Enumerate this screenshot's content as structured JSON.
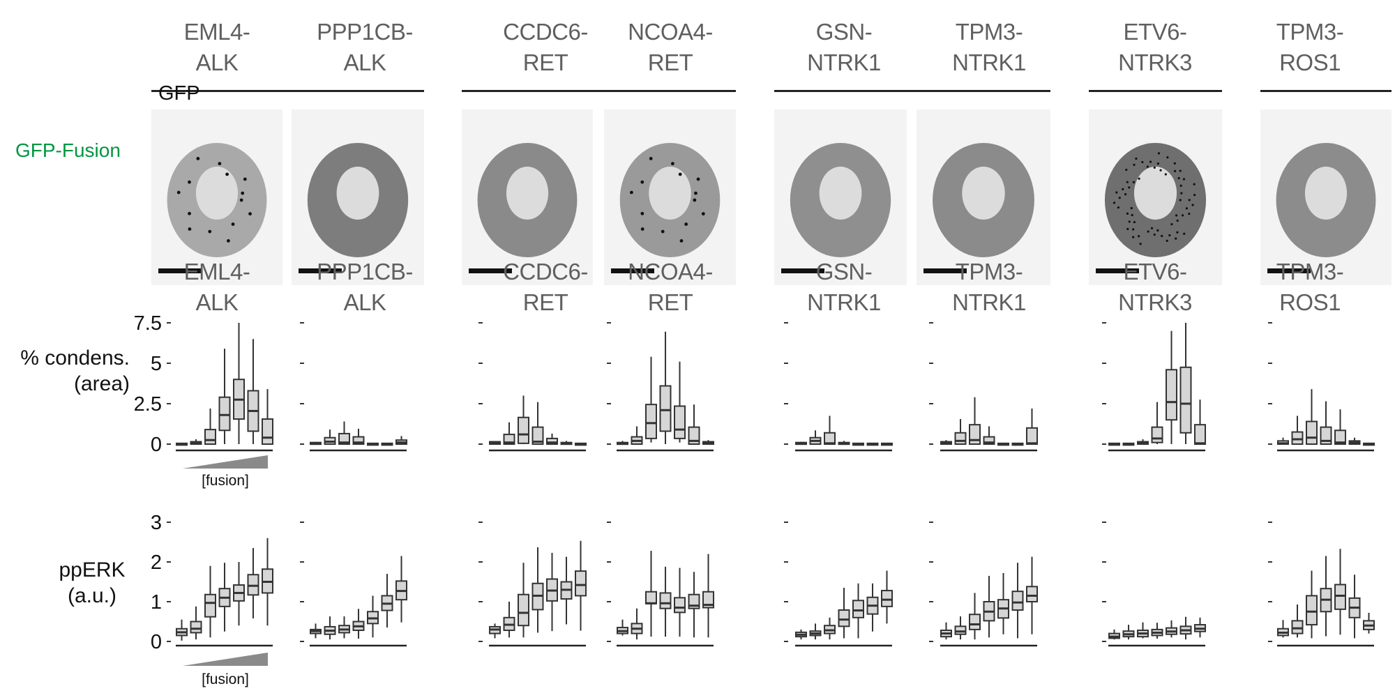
{
  "figure": {
    "image_row_label": "GFP-Fusion",
    "image_channel_label": "GFP",
    "label_color": "#009640",
    "fusion_ramp_label": "[fusion]"
  },
  "groups": [
    {
      "kinase": "ALK"
    },
    {
      "kinase": "RET"
    },
    {
      "kinase": "NTRK1"
    },
    {
      "kinase": "NTRK3"
    },
    {
      "kinase": "ROS1"
    }
  ],
  "fusions": [
    {
      "line1": "EML4-",
      "line2": "ALK",
      "group": 0
    },
    {
      "line1": "PPP1CB-",
      "line2": "ALK",
      "group": 0
    },
    {
      "line1": "CCDC6-",
      "line2": "RET",
      "group": 1
    },
    {
      "line1": "NCOA4-",
      "line2": "RET",
      "group": 1
    },
    {
      "line1": "GSN-",
      "line2": "NTRK1",
      "group": 2
    },
    {
      "line1": "TPM3-",
      "line2": "NTRK1",
      "group": 2
    },
    {
      "line1": "ETV6-",
      "line2": "NTRK3",
      "group": 3
    },
    {
      "line1": "TPM3-",
      "line2": "ROS1",
      "group": 4
    }
  ],
  "chart_data": [
    {
      "type": "box",
      "title": "% condens. (area) vs [fusion]",
      "ylabel_line1": "% condens.",
      "ylabel_line2": "(area)",
      "xlabel": "[fusion]",
      "ylim": [
        0,
        7.5
      ],
      "yticks": [
        0,
        2.5,
        5,
        7.5
      ],
      "ytick_labels": [
        "0",
        "2.5",
        "5",
        "7.5"
      ],
      "note": "7 bins of increasing fusion concentration per panel; values [whisker_low, q1, median, q3, whisker_high]",
      "series": [
        {
          "name": "EML4-ALK",
          "boxes": [
            [
              0,
              0,
              0.02,
              0.05,
              0.05
            ],
            [
              0,
              0,
              0.05,
              0.15,
              0.3
            ],
            [
              0,
              0,
              0.25,
              0.9,
              2.2
            ],
            [
              0,
              0.85,
              1.8,
              2.9,
              5.9
            ],
            [
              0,
              1.55,
              2.75,
              4.0,
              7.5
            ],
            [
              0,
              0.8,
              2.05,
              3.3,
              6.5
            ],
            [
              0,
              0,
              0.4,
              1.55,
              3.4
            ]
          ]
        },
        {
          "name": "PPP1CB-ALK",
          "boxes": [
            [
              0,
              0,
              0.02,
              0.1,
              0.15
            ],
            [
              0,
              0,
              0.15,
              0.4,
              0.9
            ],
            [
              0,
              0,
              0.1,
              0.65,
              1.4
            ],
            [
              0,
              0,
              0.1,
              0.45,
              0.95
            ],
            [
              0,
              0,
              0.02,
              0.05,
              0.05
            ],
            [
              0,
              0,
              0.02,
              0.05,
              0.05
            ],
            [
              0,
              0,
              0.1,
              0.25,
              0.5
            ]
          ]
        },
        {
          "name": "CCDC6-RET",
          "boxes": [
            [
              0,
              0,
              0.05,
              0.15,
              0.15
            ],
            [
              0,
              0,
              0.1,
              0.6,
              1.35
            ],
            [
              0,
              0.05,
              0.6,
              1.65,
              3.0
            ],
            [
              0,
              0,
              0.15,
              1.05,
              2.6
            ],
            [
              0,
              0,
              0.1,
              0.35,
              0.65
            ],
            [
              0,
              0,
              0.05,
              0.1,
              0.2
            ],
            [
              0,
              0,
              0.02,
              0.05,
              0.05
            ]
          ]
        },
        {
          "name": "NCOA4-RET",
          "boxes": [
            [
              0,
              0,
              0.05,
              0.1,
              0.2
            ],
            [
              0,
              0,
              0.2,
              0.45,
              1.1
            ],
            [
              0.1,
              0.35,
              1.3,
              2.45,
              5.4
            ],
            [
              0,
              0.8,
              2.1,
              3.6,
              6.95
            ],
            [
              0.1,
              0.35,
              0.9,
              2.35,
              5.1
            ],
            [
              0,
              0,
              0.2,
              1.05,
              2.45
            ],
            [
              0,
              0,
              0.05,
              0.15,
              0.25
            ]
          ]
        },
        {
          "name": "GSN-NTRK1",
          "boxes": [
            [
              0,
              0,
              0.02,
              0.1,
              0.15
            ],
            [
              0,
              0,
              0.2,
              0.4,
              0.85
            ],
            [
              0,
              0,
              0.05,
              0.7,
              1.75
            ],
            [
              0,
              0,
              0.02,
              0.1,
              0.2
            ],
            [
              0,
              0,
              0.02,
              0.05,
              0.05
            ],
            [
              0,
              0,
              0.02,
              0.05,
              0.05
            ],
            [
              0,
              0,
              0.02,
              0.05,
              0.05
            ]
          ]
        },
        {
          "name": "TPM3-NTRK1",
          "boxes": [
            [
              0,
              0,
              0.05,
              0.15,
              0.25
            ],
            [
              0,
              0,
              0.2,
              0.7,
              1.55
            ],
            [
              0,
              0,
              0.25,
              1.2,
              2.9
            ],
            [
              0,
              0,
              0.1,
              0.45,
              1.1
            ],
            [
              0,
              0,
              0.02,
              0.05,
              0.05
            ],
            [
              0,
              0,
              0.02,
              0.05,
              0.05
            ],
            [
              0,
              0,
              0.05,
              1.0,
              2.2
            ]
          ]
        },
        {
          "name": "ETV6-NTRK3",
          "boxes": [
            [
              0,
              0,
              0.02,
              0.05,
              0.05
            ],
            [
              0,
              0,
              0.02,
              0.05,
              0.05
            ],
            [
              0,
              0,
              0.05,
              0.15,
              0.3
            ],
            [
              0,
              0.1,
              0.35,
              1.05,
              2.6
            ],
            [
              0,
              1.5,
              2.6,
              4.6,
              7.0
            ],
            [
              0,
              0.7,
              2.5,
              4.75,
              7.5
            ],
            [
              0,
              0,
              0.05,
              1.2,
              2.75
            ]
          ]
        },
        {
          "name": "TPM3-ROS1",
          "boxes": [
            [
              0,
              0,
              0.05,
              0.2,
              0.4
            ],
            [
              0,
              0,
              0.3,
              0.75,
              1.75
            ],
            [
              0,
              0,
              0.4,
              1.4,
              3.4
            ],
            [
              0,
              0,
              0.2,
              1.05,
              2.65
            ],
            [
              0,
              0,
              0.1,
              0.85,
              2.15
            ],
            [
              0,
              0,
              0.1,
              0.2,
              0.4
            ],
            [
              0,
              0,
              0.02,
              0.05,
              0.05
            ]
          ]
        }
      ]
    },
    {
      "type": "box",
      "title": "ppERK (a.u.) vs [fusion]",
      "ylabel_line1": "ppERK",
      "ylabel_line2": "(a.u.)",
      "xlabel": "[fusion]",
      "ylim": [
        0,
        3
      ],
      "yticks": [
        0,
        1,
        2,
        3
      ],
      "ytick_labels": [
        "0",
        "1",
        "2",
        "3"
      ],
      "note": "7 bins of increasing fusion concentration per panel; values [whisker_low, q1, median, q3, whisker_high]",
      "series": [
        {
          "name": "EML4-ALK",
          "boxes": [
            [
              0.02,
              0.15,
              0.23,
              0.32,
              0.55
            ],
            [
              0.05,
              0.22,
              0.32,
              0.5,
              0.88
            ],
            [
              0.1,
              0.62,
              0.97,
              1.18,
              1.9
            ],
            [
              0.25,
              0.88,
              1.1,
              1.33,
              1.98
            ],
            [
              0.4,
              1.02,
              1.22,
              1.42,
              2.0
            ],
            [
              0.58,
              1.17,
              1.4,
              1.68,
              2.35
            ],
            [
              0.4,
              1.22,
              1.5,
              1.82,
              2.6
            ]
          ]
        },
        {
          "name": "PPP1CB-ALK",
          "boxes": [
            [
              0.08,
              0.2,
              0.26,
              0.3,
              0.45
            ],
            [
              0.05,
              0.18,
              0.27,
              0.37,
              0.63
            ],
            [
              0.08,
              0.22,
              0.3,
              0.4,
              0.63
            ],
            [
              0.07,
              0.28,
              0.38,
              0.5,
              0.82
            ],
            [
              0.1,
              0.45,
              0.58,
              0.75,
              1.15
            ],
            [
              0.35,
              0.78,
              0.95,
              1.15,
              1.7
            ],
            [
              0.48,
              1.05,
              1.27,
              1.52,
              2.15
            ]
          ]
        },
        {
          "name": "CCDC6-RET",
          "boxes": [
            [
              0.08,
              0.2,
              0.3,
              0.37,
              0.45
            ],
            [
              0.1,
              0.28,
              0.42,
              0.6,
              1.0
            ],
            [
              0.1,
              0.4,
              0.72,
              1.18,
              1.98
            ],
            [
              0.22,
              0.8,
              1.15,
              1.46,
              2.37
            ],
            [
              0.26,
              1.02,
              1.28,
              1.57,
              2.23
            ],
            [
              0.43,
              1.07,
              1.3,
              1.5,
              2.13
            ],
            [
              0.27,
              1.15,
              1.42,
              1.77,
              2.53
            ]
          ]
        },
        {
          "name": "NCOA4-RET",
          "boxes": [
            [
              0.15,
              0.2,
              0.26,
              0.35,
              0.55
            ],
            [
              0.05,
              0.2,
              0.32,
              0.45,
              0.83
            ],
            [
              0.12,
              0.95,
              0.96,
              1.25,
              2.28
            ],
            [
              0.12,
              0.83,
              0.96,
              1.22,
              1.88
            ],
            [
              0.12,
              0.73,
              0.85,
              1.1,
              1.85
            ],
            [
              0.1,
              0.83,
              0.9,
              1.18,
              1.75
            ],
            [
              0.1,
              0.85,
              0.92,
              1.25,
              2.2
            ]
          ]
        },
        {
          "name": "GSN-NTRK1",
          "boxes": [
            [
              0.05,
              0.12,
              0.17,
              0.23,
              0.3
            ],
            [
              0.05,
              0.15,
              0.2,
              0.26,
              0.45
            ],
            [
              0.05,
              0.2,
              0.28,
              0.4,
              0.6
            ],
            [
              0.08,
              0.38,
              0.55,
              0.79,
              1.35
            ],
            [
              0.08,
              0.6,
              0.78,
              1.03,
              1.46
            ],
            [
              0.25,
              0.69,
              0.9,
              1.11,
              1.46
            ],
            [
              0.45,
              0.88,
              1.05,
              1.28,
              1.78
            ]
          ]
        },
        {
          "name": "TPM3-NTRK1",
          "boxes": [
            [
              0.05,
              0.12,
              0.2,
              0.28,
              0.48
            ],
            [
              0.05,
              0.18,
              0.25,
              0.38,
              0.63
            ],
            [
              0.05,
              0.3,
              0.43,
              0.68,
              1.22
            ],
            [
              0.1,
              0.52,
              0.75,
              1.0,
              1.65
            ],
            [
              0.18,
              0.59,
              0.83,
              1.05,
              1.72
            ],
            [
              0.08,
              0.79,
              0.98,
              1.26,
              1.98
            ],
            [
              0.18,
              1.0,
              1.15,
              1.38,
              2.13
            ]
          ]
        },
        {
          "name": "ETV6-NTRK3",
          "boxes": [
            [
              0.05,
              0.08,
              0.12,
              0.2,
              0.3
            ],
            [
              0.05,
              0.12,
              0.18,
              0.26,
              0.42
            ],
            [
              0.08,
              0.12,
              0.2,
              0.28,
              0.48
            ],
            [
              0.07,
              0.15,
              0.22,
              0.3,
              0.47
            ],
            [
              0.1,
              0.18,
              0.25,
              0.34,
              0.53
            ],
            [
              0.05,
              0.19,
              0.28,
              0.38,
              0.62
            ],
            [
              0.1,
              0.25,
              0.32,
              0.42,
              0.6
            ]
          ]
        },
        {
          "name": "TPM3-ROS1",
          "boxes": [
            [
              0.1,
              0.15,
              0.22,
              0.32,
              0.54
            ],
            [
              0.1,
              0.2,
              0.33,
              0.52,
              0.93
            ],
            [
              0.08,
              0.42,
              0.75,
              1.15,
              1.78
            ],
            [
              0.13,
              0.75,
              1.05,
              1.33,
              2.15
            ],
            [
              0.17,
              0.81,
              1.15,
              1.43,
              2.33
            ],
            [
              0.08,
              0.6,
              0.85,
              1.09,
              1.68
            ],
            [
              0.2,
              0.3,
              0.4,
              0.52,
              0.72
            ]
          ]
        }
      ]
    }
  ]
}
